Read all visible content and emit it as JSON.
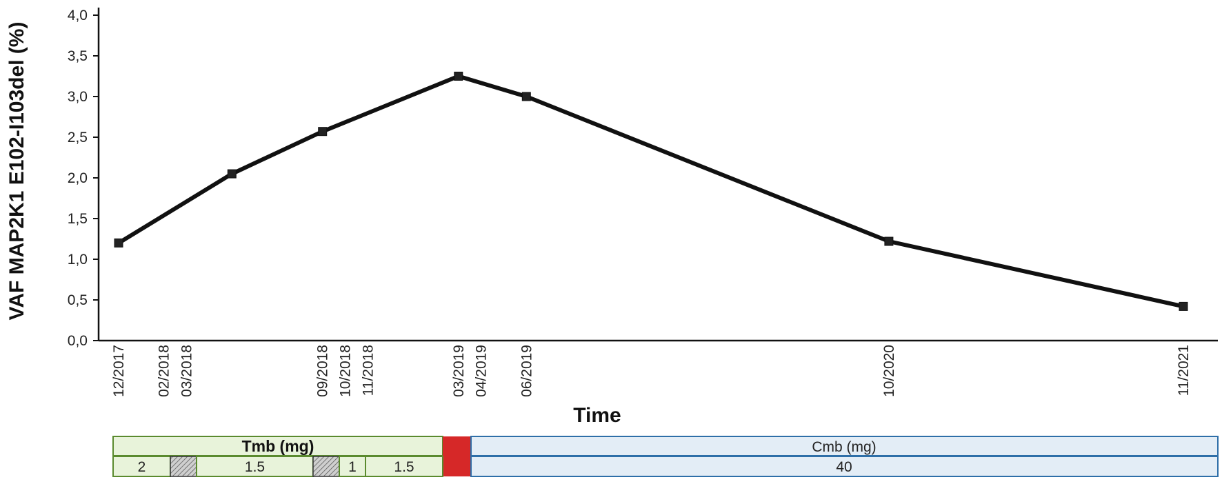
{
  "chart_data": {
    "type": "line",
    "xlabel": "Time",
    "ylabel": "VAF  MAP2K1 E102-I103del (%)",
    "ylim": [
      0,
      4
    ],
    "yticks": [
      "0,0",
      "0,5",
      "1,0",
      "1,5",
      "2,0",
      "2,5",
      "3,0",
      "3,5",
      "4,0"
    ],
    "x_date_labels": [
      "12/2017",
      "02/2018",
      "03/2018",
      "09/2018",
      "10/2018",
      "11/2018",
      "03/2019",
      "04/2019",
      "06/2019",
      "10/2020",
      "11/2021"
    ],
    "series": [
      {
        "x": [
          "12/2017",
          "05/2018",
          "09/2018",
          "03/2019",
          "06/2019",
          "10/2020",
          "11/2021"
        ],
        "values": [
          1.2,
          2.05,
          2.57,
          3.25,
          3.0,
          1.22,
          0.42
        ]
      }
    ],
    "grid": false,
    "legend": "none"
  },
  "treatment": {
    "tmb_title": "Tmb (mg)",
    "cmb_title": "Cmb (mg)",
    "tmb_doses": [
      "2",
      "1.5",
      "1",
      "1.5"
    ],
    "cmb_dose": "40",
    "colors": {
      "tmb_fill": "#e8f3da",
      "tmb_border": "#5a8a2e",
      "cmb_fill": "#e3edf6",
      "cmb_border": "#2e6fa8",
      "gap_fill": "#d62828",
      "pause_fill": "#cfcfcf"
    }
  }
}
